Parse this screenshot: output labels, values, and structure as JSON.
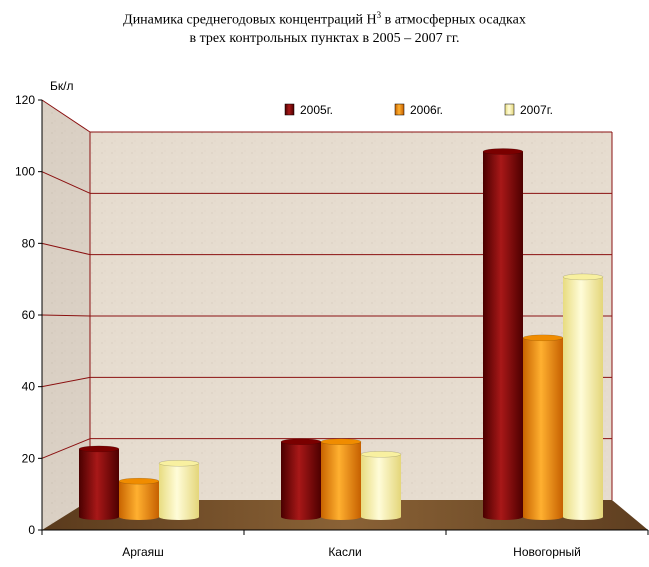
{
  "title": {
    "line1_before": "Динамика среднегодовых концентраций H",
    "line1_sup": "3",
    "line1_after": " в атмосферных осадках",
    "line2": "в трех контрольных пунктах в 2005 – 2007 гг."
  },
  "chart_data": {
    "type": "bar",
    "title": "Динамика среднегодовых концентраций H3 в атмосферных осадках в трех контрольных пунктах в 2005 – 2007 гг.",
    "ylabel": "Бк/л",
    "xlabel": "",
    "ylim": [
      0,
      120
    ],
    "yticks": [
      0,
      20,
      40,
      60,
      80,
      100,
      120
    ],
    "categories": [
      "Аргаяш",
      "Касли",
      "Новогорный"
    ],
    "series": [
      {
        "name": "2005г.",
        "values": [
          19,
          21,
          102
        ],
        "color": "#7a0000"
      },
      {
        "name": "2006г.",
        "values": [
          10,
          21,
          50
        ],
        "color": "#f08c00"
      },
      {
        "name": "2007г.",
        "values": [
          15,
          17.5,
          67
        ],
        "color": "#f8f0a0"
      }
    ],
    "legend_position": "top",
    "grid": true,
    "style": "3d"
  }
}
